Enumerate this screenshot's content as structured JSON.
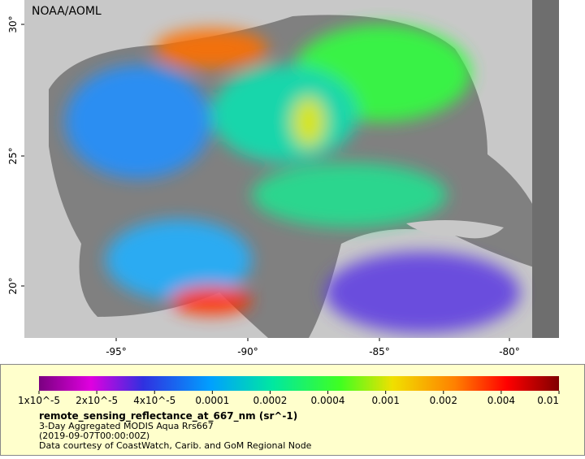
{
  "map": {
    "credit": "NOAA/AOML",
    "lat_labels": [
      "30°",
      "25°",
      "20°"
    ],
    "lon_labels": [
      "-95°",
      "-90°",
      "-85°",
      "-80°"
    ]
  },
  "colorbar": {
    "labels": [
      "1x10^-5",
      "2x10^-5",
      "4x10^-5",
      "0.0001",
      "0.0002",
      "0.0004",
      "0.001",
      "0.002",
      "0.004",
      "0.01"
    ]
  },
  "caption": {
    "variable": "remote_sensing_reflectance_at_667_nm (sr^-1)",
    "lines": [
      "3-Day Aggregated MODIS Aqua Rrs667",
      "(2019-09-07T00:00:00Z)",
      "Data courtesy of CoastWatch, Carib. and GoM Regional Node"
    ]
  }
}
